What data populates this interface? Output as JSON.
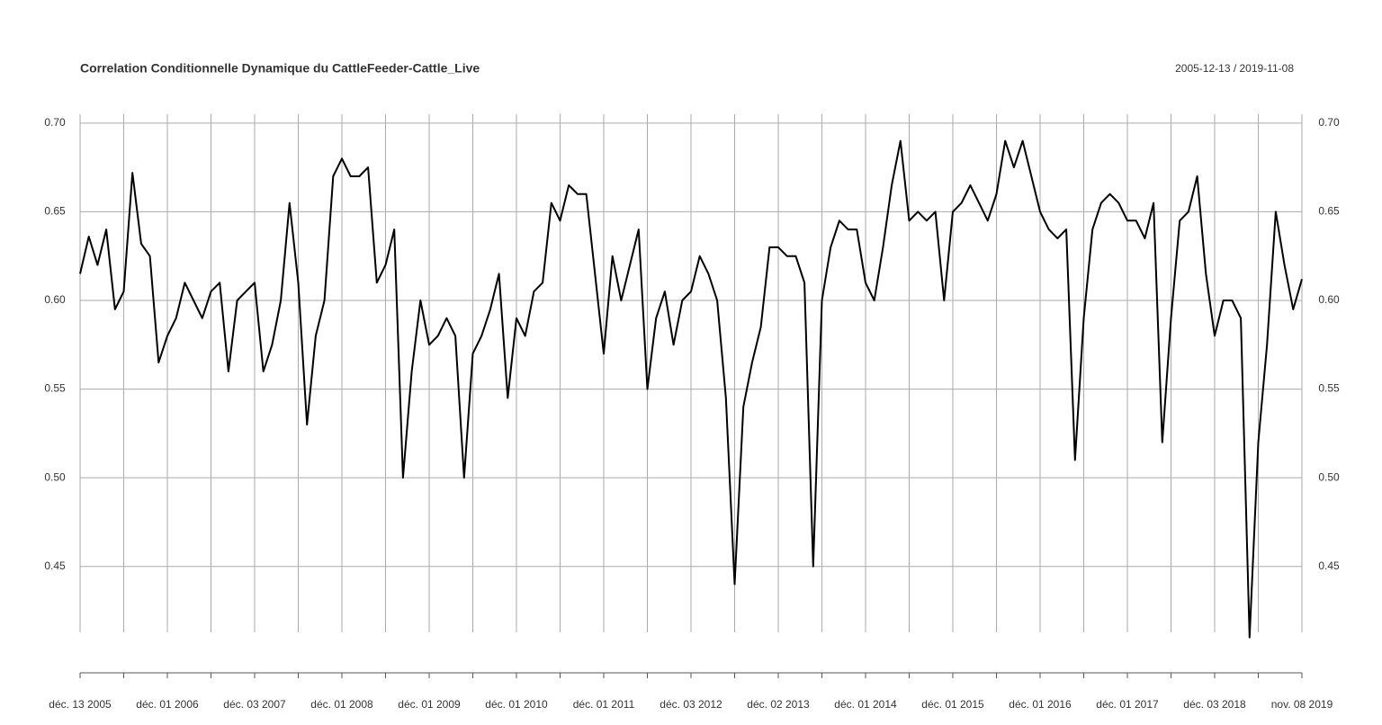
{
  "chart_data": {
    "type": "line",
    "title": "Correlation Conditionnelle Dynamique du CattleFeeder-Cattle_Live",
    "subtitle": "2005-12-13 / 2019-11-08",
    "categories": [
      "déc. 13 2005",
      null,
      null,
      null,
      null,
      null,
      null,
      null,
      null,
      null,
      "déc. 01 2006",
      null,
      null,
      null,
      null,
      null,
      null,
      null,
      null,
      null,
      "déc. 03 2007",
      null,
      null,
      null,
      null,
      null,
      null,
      null,
      null,
      null,
      "déc. 01 2008",
      null,
      null,
      null,
      null,
      null,
      null,
      null,
      null,
      null,
      "déc. 01 2009",
      null,
      null,
      null,
      null,
      null,
      null,
      null,
      null,
      null,
      "déc. 01 2010",
      null,
      null,
      null,
      null,
      null,
      null,
      null,
      null,
      null,
      "déc. 01 2011",
      null,
      null,
      null,
      null,
      null,
      null,
      null,
      null,
      null,
      "déc. 03 2012",
      null,
      null,
      null,
      null,
      null,
      null,
      null,
      null,
      null,
      "déc. 02 2013",
      null,
      null,
      null,
      null,
      null,
      null,
      null,
      null,
      null,
      "déc. 01 2014",
      null,
      null,
      null,
      null,
      null,
      null,
      null,
      null,
      null,
      "déc. 01 2015",
      null,
      null,
      null,
      null,
      null,
      null,
      null,
      null,
      null,
      "déc. 01 2016",
      null,
      null,
      null,
      null,
      null,
      null,
      null,
      null,
      null,
      "déc. 01 2017",
      null,
      null,
      null,
      null,
      null,
      null,
      null,
      null,
      null,
      "déc. 03 2018",
      null,
      null,
      null,
      null,
      null,
      null,
      null,
      null,
      null,
      "nov. 08 2019"
    ],
    "values": [
      0.615,
      0.636,
      0.62,
      0.64,
      0.595,
      0.605,
      0.672,
      0.632,
      0.625,
      0.565,
      0.58,
      0.59,
      0.61,
      0.6,
      0.59,
      0.605,
      0.61,
      0.56,
      0.6,
      0.605,
      0.61,
      0.56,
      0.575,
      0.6,
      0.655,
      0.61,
      0.53,
      0.58,
      0.6,
      0.67,
      0.68,
      0.67,
      0.67,
      0.675,
      0.61,
      0.62,
      0.64,
      0.5,
      0.56,
      0.6,
      0.575,
      0.58,
      0.59,
      0.58,
      0.5,
      0.57,
      0.58,
      0.595,
      0.615,
      0.545,
      0.59,
      0.58,
      0.605,
      0.61,
      0.655,
      0.645,
      0.665,
      0.66,
      0.66,
      0.615,
      0.57,
      0.625,
      0.6,
      0.62,
      0.64,
      0.55,
      0.59,
      0.605,
      0.575,
      0.6,
      0.605,
      0.625,
      0.615,
      0.6,
      0.545,
      0.44,
      0.54,
      0.565,
      0.585,
      0.63,
      0.63,
      0.625,
      0.625,
      0.61,
      0.45,
      0.6,
      0.63,
      0.645,
      0.64,
      0.64,
      0.61,
      0.6,
      0.63,
      0.665,
      0.69,
      0.645,
      0.65,
      0.645,
      0.65,
      0.6,
      0.65,
      0.655,
      0.665,
      0.655,
      0.645,
      0.66,
      0.69,
      0.675,
      0.69,
      0.67,
      0.65,
      0.64,
      0.635,
      0.64,
      0.51,
      0.59,
      0.64,
      0.655,
      0.66,
      0.655,
      0.645,
      0.645,
      0.635,
      0.655,
      0.52,
      0.59,
      0.645,
      0.65,
      0.67,
      0.615,
      0.58,
      0.6,
      0.6,
      0.59,
      0.41,
      0.52,
      0.575,
      0.65,
      0.62,
      0.595,
      0.612
    ],
    "color": "#000000",
    "ylim": [
      0.39,
      0.705
    ],
    "yticks": [
      {
        "value": 0.45,
        "label": "0.45"
      },
      {
        "value": 0.5,
        "label": "0.50"
      },
      {
        "value": 0.55,
        "label": "0.55"
      },
      {
        "value": 0.6,
        "label": "0.60"
      },
      {
        "value": 0.65,
        "label": "0.65"
      },
      {
        "value": 0.7,
        "label": "0.70"
      }
    ],
    "grid": true
  }
}
